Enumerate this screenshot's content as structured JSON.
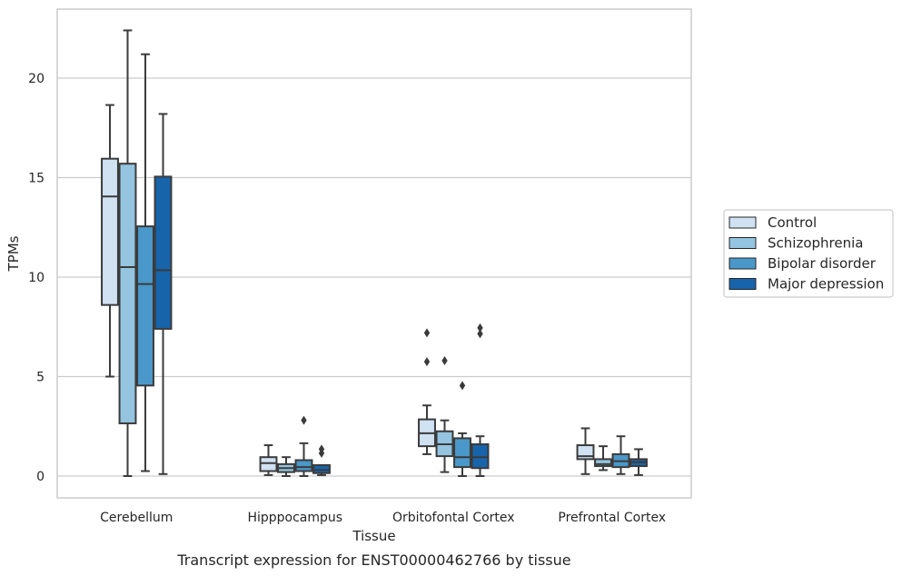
{
  "chart_data": {
    "type": "box",
    "caption": "Transcript expression for ENST00000462766 by tissue",
    "xlabel": "Tissue",
    "ylabel": "TPMs",
    "ylim": [
      -1.1,
      23.5
    ],
    "yticks": [
      0,
      5,
      10,
      15,
      20
    ],
    "grid": "horizontal",
    "legend_position": "right",
    "categories": [
      "Cerebellum",
      "Hipppocampus",
      "Orbitofontal Cortex",
      "Prefrontal Cortex"
    ],
    "series": [
      {
        "name": "Control",
        "color": "#d0e1f2",
        "boxes": [
          {
            "whisker_low": 5.0,
            "q1": 8.6,
            "median": 14.05,
            "q3": 15.95,
            "whisker_high": 18.65,
            "outliers": []
          },
          {
            "whisker_low": 0.05,
            "q1": 0.25,
            "median": 0.65,
            "q3": 0.95,
            "whisker_high": 1.55,
            "outliers": []
          },
          {
            "whisker_low": 1.1,
            "q1": 1.5,
            "median": 2.15,
            "q3": 2.85,
            "whisker_high": 3.55,
            "outliers": [
              5.75,
              7.2
            ]
          },
          {
            "whisker_low": 0.1,
            "q1": 0.85,
            "median": 1.0,
            "q3": 1.55,
            "whisker_high": 2.4,
            "outliers": []
          }
        ]
      },
      {
        "name": "Schizophrenia",
        "color": "#94c4df",
        "boxes": [
          {
            "whisker_low": 0.0,
            "q1": 2.65,
            "median": 10.5,
            "q3": 15.7,
            "whisker_high": 22.4,
            "outliers": []
          },
          {
            "whisker_low": 0.0,
            "q1": 0.2,
            "median": 0.4,
            "q3": 0.6,
            "whisker_high": 0.95,
            "outliers": []
          },
          {
            "whisker_low": 0.2,
            "q1": 1.0,
            "median": 1.6,
            "q3": 2.25,
            "whisker_high": 2.8,
            "outliers": [
              5.8
            ]
          },
          {
            "whisker_low": 0.3,
            "q1": 0.5,
            "median": 0.6,
            "q3": 0.85,
            "whisker_high": 1.5,
            "outliers": []
          }
        ]
      },
      {
        "name": "Bipolar disorder",
        "color": "#4a98c9",
        "boxes": [
          {
            "whisker_low": 0.25,
            "q1": 4.55,
            "median": 9.65,
            "q3": 12.55,
            "whisker_high": 21.2,
            "outliers": []
          },
          {
            "whisker_low": 0.0,
            "q1": 0.25,
            "median": 0.45,
            "q3": 0.8,
            "whisker_high": 1.65,
            "outliers": [
              2.8
            ]
          },
          {
            "whisker_low": 0.0,
            "q1": 0.45,
            "median": 0.95,
            "q3": 1.9,
            "whisker_high": 2.15,
            "outliers": [
              4.55
            ]
          },
          {
            "whisker_low": 0.1,
            "q1": 0.45,
            "median": 0.75,
            "q3": 1.1,
            "whisker_high": 2.0,
            "outliers": []
          }
        ]
      },
      {
        "name": "Major depression",
        "color": "#1764ab",
        "boxes": [
          {
            "whisker_low": 0.1,
            "q1": 7.4,
            "median": 10.35,
            "q3": 15.05,
            "whisker_high": 18.2,
            "outliers": []
          },
          {
            "whisker_low": 0.05,
            "q1": 0.15,
            "median": 0.3,
            "q3": 0.55,
            "whisker_high": 0.55,
            "outliers": [
              1.15,
              1.35
            ]
          },
          {
            "whisker_low": 0.0,
            "q1": 0.4,
            "median": 0.95,
            "q3": 1.6,
            "whisker_high": 2.0,
            "outliers": [
              7.15,
              7.45
            ]
          },
          {
            "whisker_low": 0.05,
            "q1": 0.5,
            "median": 0.7,
            "q3": 0.85,
            "whisker_high": 1.35,
            "outliers": []
          }
        ]
      }
    ]
  }
}
